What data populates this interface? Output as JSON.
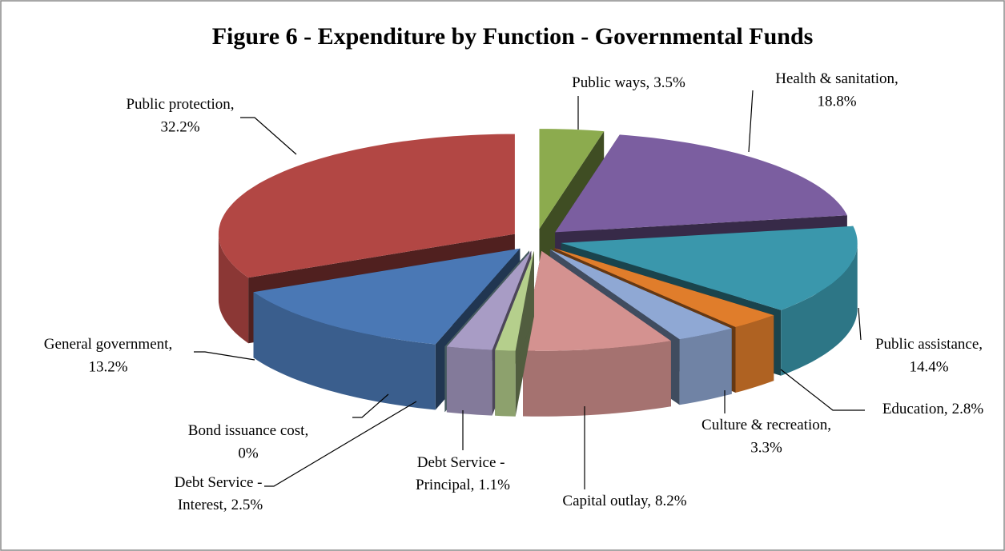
{
  "chart_data": {
    "type": "pie",
    "title": "Figure 6 - Expenditure by Function - Governmental Funds",
    "categories": [
      "Public ways",
      "Health & sanitation",
      "Public assistance",
      "Education",
      "Culture & recreation",
      "Capital outlay",
      "Debt Service - Principal",
      "Debt Service - Interest",
      "Bond issuance cost",
      "General government",
      "Public protection"
    ],
    "values": [
      3.5,
      18.8,
      14.4,
      2.8,
      3.3,
      8.2,
      1.1,
      2.5,
      0,
      13.2,
      32.2
    ],
    "value_labels": [
      "3.5%",
      "18.8%",
      "14.4%",
      "2.8%",
      "3.3%",
      "8.2%",
      "1.1%",
      "2.5%",
      "0%",
      "13.2%",
      "32.2%"
    ],
    "label_separator": ",",
    "colors": [
      "#8cab4e",
      "#7b5ea0",
      "#3a97ac",
      "#e07d2b",
      "#8fa8d4",
      "#d49290",
      "#b5cf8c",
      "#a89cc5",
      "#9ccbd6",
      "#4a78b5",
      "#b24744"
    ]
  }
}
